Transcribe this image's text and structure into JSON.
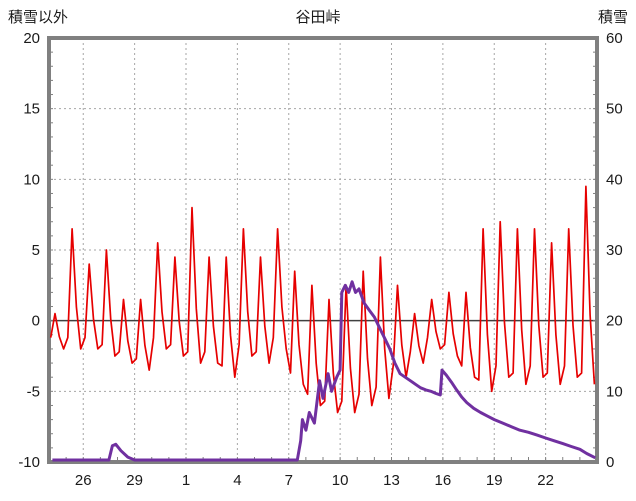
{
  "header": {
    "left_axis_title": "積雪以外",
    "chart_title": "谷田峠",
    "right_axis_title": "積雪"
  },
  "chart_data": {
    "type": "line",
    "title": "谷田峠",
    "x_axis": {
      "domain": [
        24.0,
        56.0
      ],
      "tick_values": [
        26,
        29,
        32,
        35,
        38,
        41,
        44,
        47,
        50,
        53
      ],
      "tick_labels": [
        "26",
        "29",
        "1",
        "4",
        "7",
        "10",
        "13",
        "16",
        "19",
        "22"
      ],
      "minor_tick_step": 1
    },
    "left_axis": {
      "title": "積雪以外",
      "range": [
        -10,
        20
      ],
      "ticks": [
        20,
        15,
        10,
        5,
        0,
        -5,
        -10
      ]
    },
    "right_axis": {
      "title": "積雪",
      "range": [
        0,
        60
      ],
      "ticks": [
        60,
        50,
        40,
        30,
        20,
        10,
        0
      ]
    },
    "style": {
      "grid_color": "#a6a6a6",
      "frame_color": "#808080",
      "zero_line_color": "#404040",
      "background": "#ffffff"
    },
    "series": [
      {
        "name": "積雪以外",
        "axis": "left",
        "color": "#e60000",
        "daily_min_max": [
          [
            24,
            -2,
            0.5
          ],
          [
            25,
            -2,
            6.5
          ],
          [
            26,
            -2,
            4
          ],
          [
            27,
            -2.5,
            5
          ],
          [
            28,
            -3,
            1.5
          ],
          [
            29,
            -3.5,
            1.5
          ],
          [
            30,
            -2,
            5.5
          ],
          [
            31,
            -2.5,
            4.5
          ],
          [
            32,
            -3,
            8
          ],
          [
            33,
            -3,
            4.5
          ],
          [
            34,
            -4,
            4.5
          ],
          [
            35,
            -2.5,
            6.5
          ],
          [
            36,
            -3,
            4.5
          ],
          [
            37,
            -2,
            6.5
          ],
          [
            38,
            -4.5,
            3.5
          ],
          [
            39,
            -6,
            2.5
          ],
          [
            40,
            -6.5,
            1.5
          ],
          [
            41,
            -6.5,
            2.5
          ],
          [
            42,
            -6,
            3.5
          ],
          [
            43,
            -5.5,
            4.5
          ],
          [
            44,
            -4,
            2.5
          ],
          [
            45,
            -3,
            0.5
          ],
          [
            46,
            -2,
            1.5
          ],
          [
            47,
            -2.5,
            2
          ],
          [
            48,
            -4,
            2
          ],
          [
            49,
            -5,
            6.5
          ],
          [
            50,
            -4,
            7
          ],
          [
            51,
            -4.5,
            6.5
          ],
          [
            52,
            -4,
            6.5
          ],
          [
            53,
            -4.5,
            5.5
          ],
          [
            54,
            -4,
            6.5
          ],
          [
            55,
            -4.5,
            9.5
          ]
        ]
      },
      {
        "name": "積雪",
        "axis": "right",
        "color": "#7030a0",
        "points": [
          [
            24.2,
            0
          ],
          [
            27.5,
            0
          ],
          [
            27.7,
            2.3
          ],
          [
            27.9,
            2.5
          ],
          [
            28.2,
            1.6
          ],
          [
            28.6,
            0.7
          ],
          [
            29.0,
            0.2
          ],
          [
            29.3,
            0
          ],
          [
            38.5,
            0
          ],
          [
            38.7,
            3
          ],
          [
            38.8,
            6
          ],
          [
            39.0,
            4.5
          ],
          [
            39.2,
            7
          ],
          [
            39.5,
            5.5
          ],
          [
            39.8,
            11.5
          ],
          [
            40.0,
            9
          ],
          [
            40.3,
            12.5
          ],
          [
            40.5,
            10
          ],
          [
            40.8,
            12
          ],
          [
            41.0,
            13
          ],
          [
            41.1,
            24
          ],
          [
            41.3,
            25
          ],
          [
            41.5,
            24
          ],
          [
            41.7,
            25.5
          ],
          [
            41.9,
            24
          ],
          [
            42.1,
            24.5
          ],
          [
            42.4,
            22.5
          ],
          [
            42.7,
            21.5
          ],
          [
            43.0,
            20.5
          ],
          [
            43.3,
            19
          ],
          [
            43.6,
            17.5
          ],
          [
            43.9,
            16
          ],
          [
            44.2,
            14
          ],
          [
            44.5,
            12.5
          ],
          [
            44.8,
            12
          ],
          [
            45.1,
            11.5
          ],
          [
            45.4,
            11
          ],
          [
            45.7,
            10.5
          ],
          [
            46.0,
            10.2
          ],
          [
            46.3,
            10
          ],
          [
            46.6,
            9.7
          ],
          [
            46.85,
            9.5
          ],
          [
            46.95,
            13
          ],
          [
            47.2,
            12.3
          ],
          [
            47.5,
            11.3
          ],
          [
            47.8,
            10.2
          ],
          [
            48.1,
            9.2
          ],
          [
            48.4,
            8.4
          ],
          [
            48.8,
            7.6
          ],
          [
            49.2,
            7
          ],
          [
            49.6,
            6.5
          ],
          [
            50.0,
            6
          ],
          [
            50.5,
            5.5
          ],
          [
            51.0,
            5
          ],
          [
            51.5,
            4.5
          ],
          [
            52.0,
            4.2
          ],
          [
            52.5,
            3.8
          ],
          [
            53.0,
            3.4
          ],
          [
            53.5,
            3
          ],
          [
            54.0,
            2.6
          ],
          [
            54.5,
            2.2
          ],
          [
            55.0,
            1.8
          ],
          [
            55.4,
            1.2
          ],
          [
            55.9,
            0.6
          ]
        ]
      }
    ]
  }
}
